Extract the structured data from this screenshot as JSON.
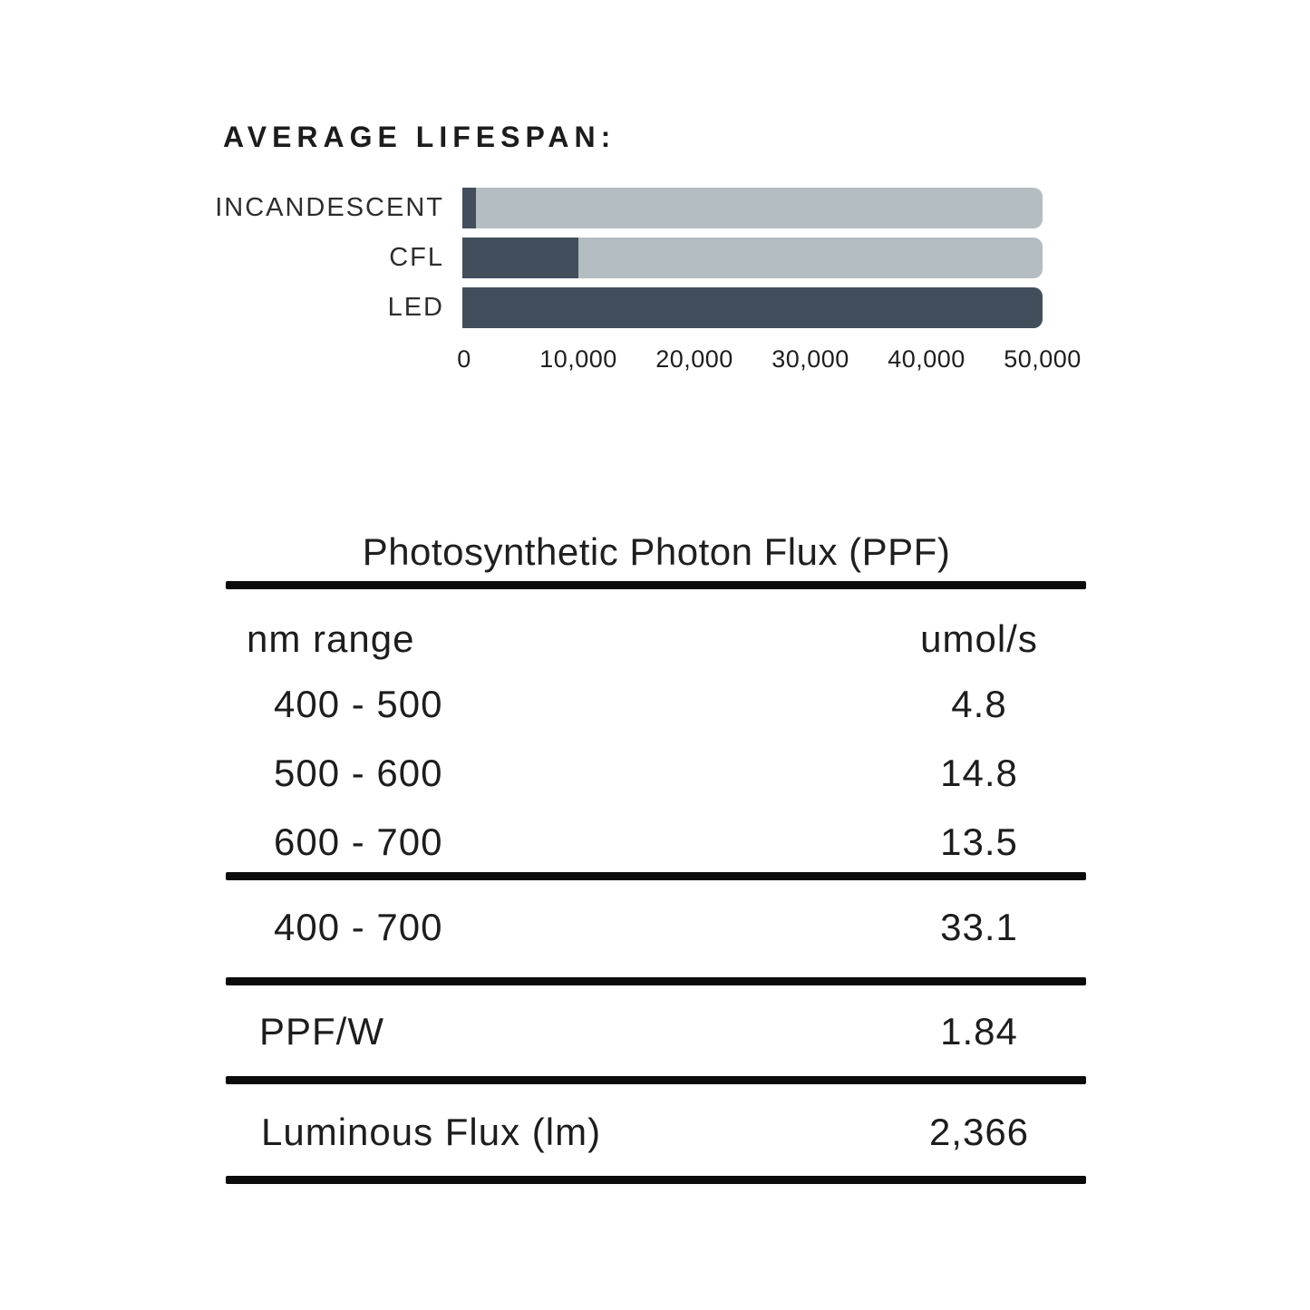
{
  "chart_data": [
    {
      "type": "bar",
      "orientation": "horizontal",
      "title": "AVERAGE LIFESPAN:",
      "categories": [
        "INCANDESCENT",
        "CFL",
        "LED"
      ],
      "values": [
        1200,
        10000,
        50000
      ],
      "xlim": [
        0,
        50000
      ],
      "x_ticks": [
        0,
        10000,
        20000,
        30000,
        40000,
        50000
      ],
      "x_tick_labels": [
        "0",
        "10,000",
        "20,000",
        "30,000",
        "40,000",
        "50,000"
      ],
      "grid": "off",
      "legend": "off",
      "colors": {
        "bar_fill": "#424e5c",
        "bar_track": "#b3bdc2"
      }
    },
    {
      "type": "table",
      "title": "Photosynthetic Photon Flux (PPF)",
      "columns": [
        "nm range",
        "umol/s"
      ],
      "rows": [
        [
          "400 - 500",
          "4.8"
        ],
        [
          "500 - 600",
          "14.8"
        ],
        [
          "600 - 700",
          "13.5"
        ],
        [
          "400 - 700",
          "33.1"
        ],
        [
          "PPF/W",
          "1.84"
        ],
        [
          "Luminous Flux (lm)",
          "2,366"
        ]
      ]
    }
  ]
}
